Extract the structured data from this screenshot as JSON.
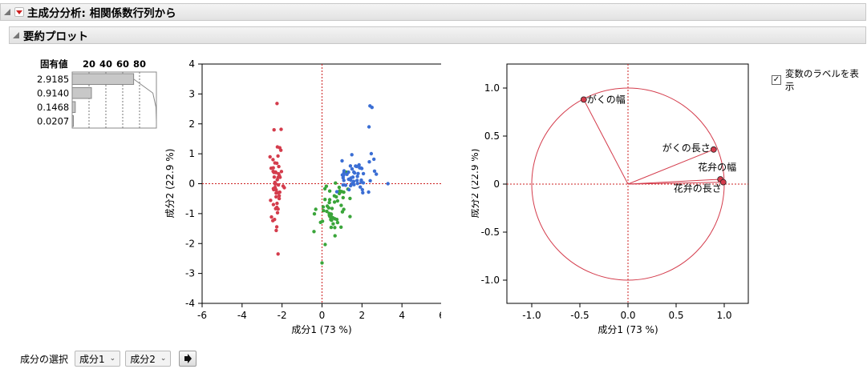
{
  "header": {
    "title": "主成分分析: 相関係数行列から"
  },
  "subheader": {
    "title": "要約プロット"
  },
  "eigen": {
    "label": "固有値",
    "scale_labels": [
      "20",
      "40",
      "60",
      "80"
    ],
    "values": [
      "2.9185",
      "0.9140",
      "0.1468",
      "0.0207"
    ],
    "percents": [
      72.96,
      22.85,
      3.67,
      0.52
    ],
    "cumulative": [
      72.96,
      95.81,
      99.48,
      100.0
    ]
  },
  "score_plot": {
    "xlabel": "成分1 (73 %)",
    "ylabel": "成分2 (22.9 %)",
    "xticks": [
      "-6",
      "-4",
      "-2",
      "0",
      "2",
      "4",
      "6"
    ],
    "yticks": [
      "4",
      "3",
      "2",
      "1",
      "0",
      "-1",
      "-2",
      "-3",
      "-4"
    ],
    "colors": {
      "setosa": "#d43c4c",
      "versicolor": "#3aa53a",
      "virginica": "#3b6ed4"
    }
  },
  "loading_plot": {
    "xlabel": "成分1 (73 %)",
    "ylabel": "成分2 (22.9 %)",
    "xticks": [
      "-1.0",
      "-0.5",
      "0.0",
      "0.5",
      "1.0"
    ],
    "yticks": [
      "1.0",
      "0.5",
      "0",
      "-0.5",
      "-1.0"
    ],
    "vectors": [
      {
        "label": "がくの幅",
        "x": -0.46,
        "y": 0.88
      },
      {
        "label": "がくの長さ",
        "x": 0.89,
        "y": 0.36
      },
      {
        "label": "花弁の幅",
        "x": 0.96,
        "y": 0.05
      },
      {
        "label": "花弁の長さ",
        "x": 0.99,
        "y": 0.02
      }
    ],
    "color": "#d43c4c"
  },
  "controls": {
    "show_labels": "変数のラベルを表示",
    "show_labels_checked": true,
    "select_label": "成分の選択",
    "comp_x": "成分1",
    "comp_y": "成分2"
  }
}
